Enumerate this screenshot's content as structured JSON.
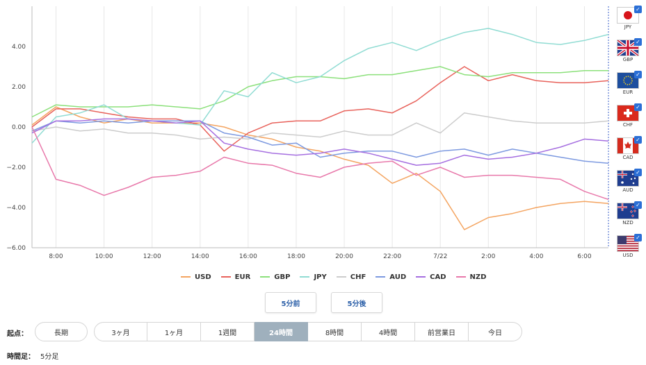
{
  "chart_data": {
    "type": "line",
    "y_ticks": [
      "4.00",
      "2.00",
      "0.00",
      "−2.00",
      "−4.00",
      "−6.00"
    ],
    "y_tick_values": [
      4,
      2,
      0,
      -2,
      -4,
      -6
    ],
    "ylim": [
      -6.0,
      6.0
    ],
    "x_ticks": [
      "8:00",
      "10:00",
      "12:00",
      "14:00",
      "16:00",
      "18:00",
      "20:00",
      "22:00",
      "7/22",
      "2:00",
      "4:00",
      "6:00"
    ],
    "x_tick_hours": [
      1,
      3,
      5,
      7,
      9,
      11,
      13,
      15,
      17,
      19,
      21,
      23
    ],
    "xlim_hours": [
      0,
      24
    ],
    "grid": "vertical",
    "legend_position": "bottom",
    "x_hours": [
      0,
      1,
      2,
      3,
      4,
      5,
      6,
      7,
      8,
      9,
      10,
      11,
      12,
      13,
      14,
      15,
      16,
      17,
      18,
      19,
      20,
      21,
      22,
      23,
      24
    ],
    "series": [
      {
        "name": "USD",
        "color": "#f4a460",
        "values": [
          0.1,
          1.0,
          0.5,
          0.2,
          0.4,
          0.2,
          0.2,
          0.2,
          0.0,
          -0.4,
          -0.6,
          -1.0,
          -1.2,
          -1.6,
          -1.9,
          -2.8,
          -2.3,
          -3.2,
          -5.1,
          -4.5,
          -4.3,
          -4.0,
          -3.8,
          -3.7,
          -3.8
        ]
      },
      {
        "name": "EUR",
        "color": "#e8615a",
        "values": [
          0.0,
          0.9,
          0.9,
          0.7,
          0.5,
          0.4,
          0.4,
          0.1,
          -1.2,
          -0.3,
          0.2,
          0.3,
          0.3,
          0.8,
          0.9,
          0.7,
          1.3,
          2.2,
          3.0,
          2.3,
          2.6,
          2.3,
          2.2,
          2.2,
          2.3
        ]
      },
      {
        "name": "GBP",
        "color": "#8be07a",
        "values": [
          0.5,
          1.1,
          1.0,
          1.0,
          1.0,
          1.1,
          1.0,
          0.9,
          1.3,
          2.0,
          2.3,
          2.5,
          2.5,
          2.4,
          2.6,
          2.6,
          2.8,
          3.0,
          2.6,
          2.5,
          2.7,
          2.7,
          2.7,
          2.8,
          2.8
        ]
      },
      {
        "name": "JPY",
        "color": "#90dcd3",
        "values": [
          -0.8,
          0.5,
          0.7,
          1.1,
          0.4,
          0.3,
          0.2,
          0.1,
          1.8,
          1.5,
          2.7,
          2.2,
          2.5,
          3.3,
          3.9,
          4.2,
          3.8,
          4.3,
          4.7,
          4.9,
          4.6,
          4.2,
          4.1,
          4.3,
          4.6
        ]
      },
      {
        "name": "CHF",
        "color": "#cccccc",
        "values": [
          -0.2,
          0.0,
          -0.2,
          -0.1,
          -0.3,
          -0.3,
          -0.4,
          -0.6,
          -0.5,
          -0.6,
          -0.3,
          -0.4,
          -0.5,
          -0.2,
          -0.4,
          -0.4,
          0.2,
          -0.3,
          0.7,
          0.5,
          0.3,
          0.2,
          0.2,
          0.2,
          0.3
        ]
      },
      {
        "name": "AUD",
        "color": "#7c99e0",
        "values": [
          -0.2,
          0.3,
          0.2,
          0.3,
          0.2,
          0.3,
          0.3,
          0.3,
          -0.3,
          -0.5,
          -0.9,
          -0.8,
          -1.5,
          -1.3,
          -1.2,
          -1.2,
          -1.5,
          -1.2,
          -1.1,
          -1.4,
          -1.1,
          -1.3,
          -1.5,
          -1.7,
          -1.8
        ]
      },
      {
        "name": "CAD",
        "color": "#a56ee0",
        "values": [
          -0.3,
          0.3,
          0.3,
          0.4,
          0.4,
          0.3,
          0.2,
          0.3,
          -0.8,
          -1.1,
          -1.3,
          -1.4,
          -1.3,
          -1.1,
          -1.3,
          -1.6,
          -1.9,
          -1.8,
          -1.4,
          -1.6,
          -1.5,
          -1.3,
          -1.0,
          -0.6,
          -0.7
        ]
      },
      {
        "name": "NZD",
        "color": "#e878aa",
        "values": [
          0.0,
          -2.6,
          -2.9,
          -3.4,
          -3.0,
          -2.5,
          -2.4,
          -2.2,
          -1.5,
          -1.8,
          -1.9,
          -2.3,
          -2.5,
          -2.0,
          -1.8,
          -1.7,
          -2.4,
          -2.0,
          -2.5,
          -2.4,
          -2.4,
          -2.5,
          -2.6,
          -3.2,
          -3.6
        ]
      }
    ]
  },
  "flags": [
    {
      "code": "JPY"
    },
    {
      "code": "GBP"
    },
    {
      "code": "EUR"
    },
    {
      "code": "CHF"
    },
    {
      "code": "CAD"
    },
    {
      "code": "AUD"
    },
    {
      "code": "NZD"
    },
    {
      "code": "USD"
    }
  ],
  "controls": {
    "prev_label": "5分前",
    "next_label": "5分後",
    "start_label": "起点：",
    "long_label": "長期",
    "periods": [
      "3ヶ月",
      "1ヶ月",
      "1週間",
      "24時間",
      "8時間",
      "4時間",
      "前営業日",
      "今日"
    ],
    "active_period": "24時間",
    "timeframe_label": "時間足：",
    "timeframe_value": "5分足"
  },
  "colors": {
    "active": "#9fb0bd",
    "link": "#2b5fa8",
    "check": "#2b6fd6"
  }
}
